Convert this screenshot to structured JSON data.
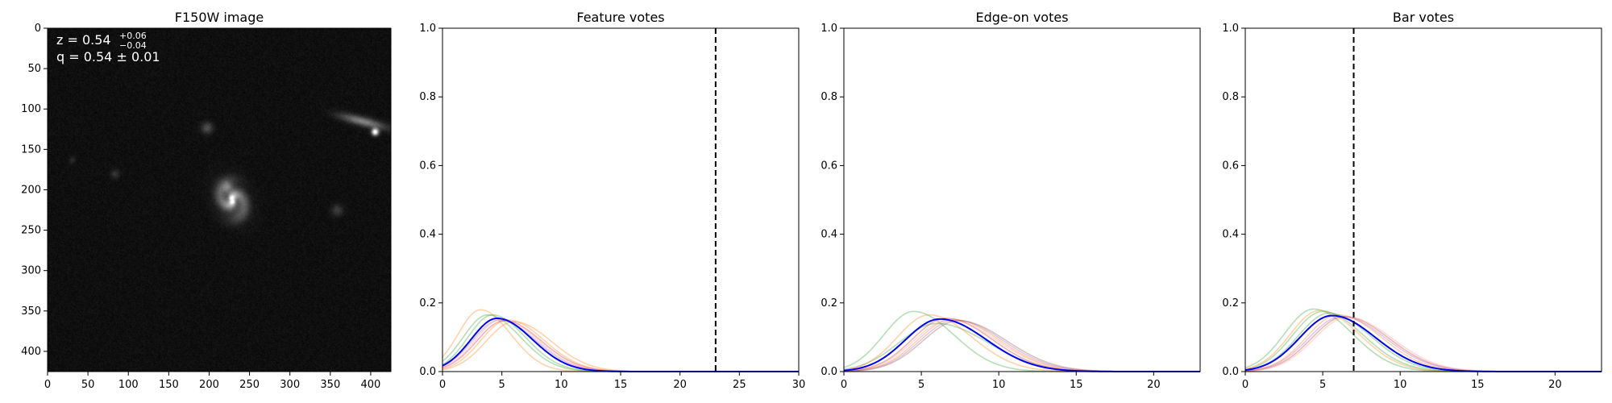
{
  "figure": {
    "panels": [
      {
        "title": "F150W image",
        "annotation_z": "z = 0.54",
        "annotation_z_sup": "+0.06",
        "annotation_z_sub": "−0.04",
        "annotation_q": "q = 0.54 ± 0.01"
      },
      {
        "title": "Feature votes"
      },
      {
        "title": "Edge-on votes"
      },
      {
        "title": "Bar votes"
      }
    ]
  },
  "chart_data": [
    {
      "type": "image",
      "title": "F150W image",
      "xlim": [
        0,
        425
      ],
      "ylim": [
        425,
        0
      ],
      "xticks": [
        0,
        50,
        100,
        150,
        200,
        250,
        300,
        350,
        400
      ],
      "yticks": [
        0,
        50,
        100,
        150,
        200,
        250,
        300,
        350,
        400
      ],
      "colormap": "gray",
      "sources": [
        {
          "x": 228,
          "y": 212,
          "peak": 1.0,
          "sigma": 14,
          "kind": "galaxy"
        },
        {
          "x": 405,
          "y": 128,
          "peak": 1.0,
          "sigma": 3,
          "kind": "star"
        },
        {
          "x": 390,
          "y": 115,
          "peak": 0.45,
          "sigma": 10,
          "kind": "elongated"
        },
        {
          "x": 197,
          "y": 123,
          "peak": 0.25,
          "sigma": 5,
          "kind": "blob"
        },
        {
          "x": 83,
          "y": 180,
          "peak": 0.15,
          "sigma": 4,
          "kind": "blob"
        },
        {
          "x": 358,
          "y": 225,
          "peak": 0.18,
          "sigma": 5,
          "kind": "blob"
        },
        {
          "x": 30,
          "y": 163,
          "peak": 0.1,
          "sigma": 3,
          "kind": "blob"
        }
      ]
    },
    {
      "type": "line",
      "title": "Feature votes",
      "xlim": [
        0,
        30
      ],
      "ylim": [
        0,
        1.0
      ],
      "xticks": [
        0,
        5,
        10,
        15,
        20,
        25,
        30
      ],
      "yticks": [
        0.0,
        0.2,
        0.4,
        0.6,
        0.8,
        1.0
      ],
      "vline": 23,
      "total_votes": 30,
      "main": {
        "color": "#0000ff",
        "peak_x": 4.6,
        "peak_y": 0.155
      },
      "samples": [
        {
          "color": "#2ca02c",
          "peak_x": 4.2,
          "peak_y": 0.165
        },
        {
          "color": "#ff7f0e",
          "peak_x": 3.2,
          "peak_y": 0.18
        },
        {
          "color": "#ff7f0e",
          "peak_x": 5.5,
          "peak_y": 0.15
        },
        {
          "color": "#9467bd",
          "peak_x": 4.8,
          "peak_y": 0.15
        },
        {
          "color": "#d62728",
          "peak_x": 5.2,
          "peak_y": 0.148
        },
        {
          "color": "#ff7f0e",
          "peak_x": 6.0,
          "peak_y": 0.145
        },
        {
          "color": "#2ca02c",
          "peak_x": 3.8,
          "peak_y": 0.165
        },
        {
          "color": "#ff9896",
          "peak_x": 5.0,
          "peak_y": 0.152
        }
      ]
    },
    {
      "type": "line",
      "title": "Edge-on votes",
      "xlim": [
        0,
        23
      ],
      "ylim": [
        0,
        1.0
      ],
      "xticks": [
        0,
        5,
        10,
        15,
        20
      ],
      "yticks": [
        0.0,
        0.2,
        0.4,
        0.6,
        0.8,
        1.0
      ],
      "total_votes": 23,
      "main": {
        "color": "#0000ff",
        "peak_x": 6.2,
        "peak_y": 0.153
      },
      "samples": [
        {
          "color": "#2ca02c",
          "peak_x": 4.5,
          "peak_y": 0.175
        },
        {
          "color": "#2ca02c",
          "peak_x": 6.0,
          "peak_y": 0.14
        },
        {
          "color": "#ff7f0e",
          "peak_x": 5.5,
          "peak_y": 0.165
        },
        {
          "color": "#ff7f0e",
          "peak_x": 7.0,
          "peak_y": 0.152
        },
        {
          "color": "#9467bd",
          "peak_x": 7.2,
          "peak_y": 0.15
        },
        {
          "color": "#d62728",
          "peak_x": 6.6,
          "peak_y": 0.155
        },
        {
          "color": "#ff9896",
          "peak_x": 6.8,
          "peak_y": 0.15
        },
        {
          "color": "#8c564b",
          "peak_x": 7.4,
          "peak_y": 0.148
        }
      ]
    },
    {
      "type": "line",
      "title": "Bar votes",
      "xlim": [
        0,
        23
      ],
      "ylim": [
        0,
        1.0
      ],
      "xticks": [
        0,
        5,
        10,
        15,
        20
      ],
      "yticks": [
        0.0,
        0.2,
        0.4,
        0.6,
        0.8,
        1.0
      ],
      "vline": 7,
      "total_votes": 23,
      "main": {
        "color": "#0000ff",
        "peak_x": 5.6,
        "peak_y": 0.163
      },
      "samples": [
        {
          "color": "#2ca02c",
          "peak_x": 4.4,
          "peak_y": 0.182
        },
        {
          "color": "#2ca02c",
          "peak_x": 5.0,
          "peak_y": 0.175
        },
        {
          "color": "#ff7f0e",
          "peak_x": 4.8,
          "peak_y": 0.178
        },
        {
          "color": "#ff7f0e",
          "peak_x": 6.0,
          "peak_y": 0.165
        },
        {
          "color": "#9467bd",
          "peak_x": 6.2,
          "peak_y": 0.16
        },
        {
          "color": "#d62728",
          "peak_x": 6.4,
          "peak_y": 0.16
        },
        {
          "color": "#ff9896",
          "peak_x": 6.6,
          "peak_y": 0.158
        },
        {
          "color": "#2ca02c",
          "peak_x": 5.4,
          "peak_y": 0.17
        }
      ]
    }
  ]
}
